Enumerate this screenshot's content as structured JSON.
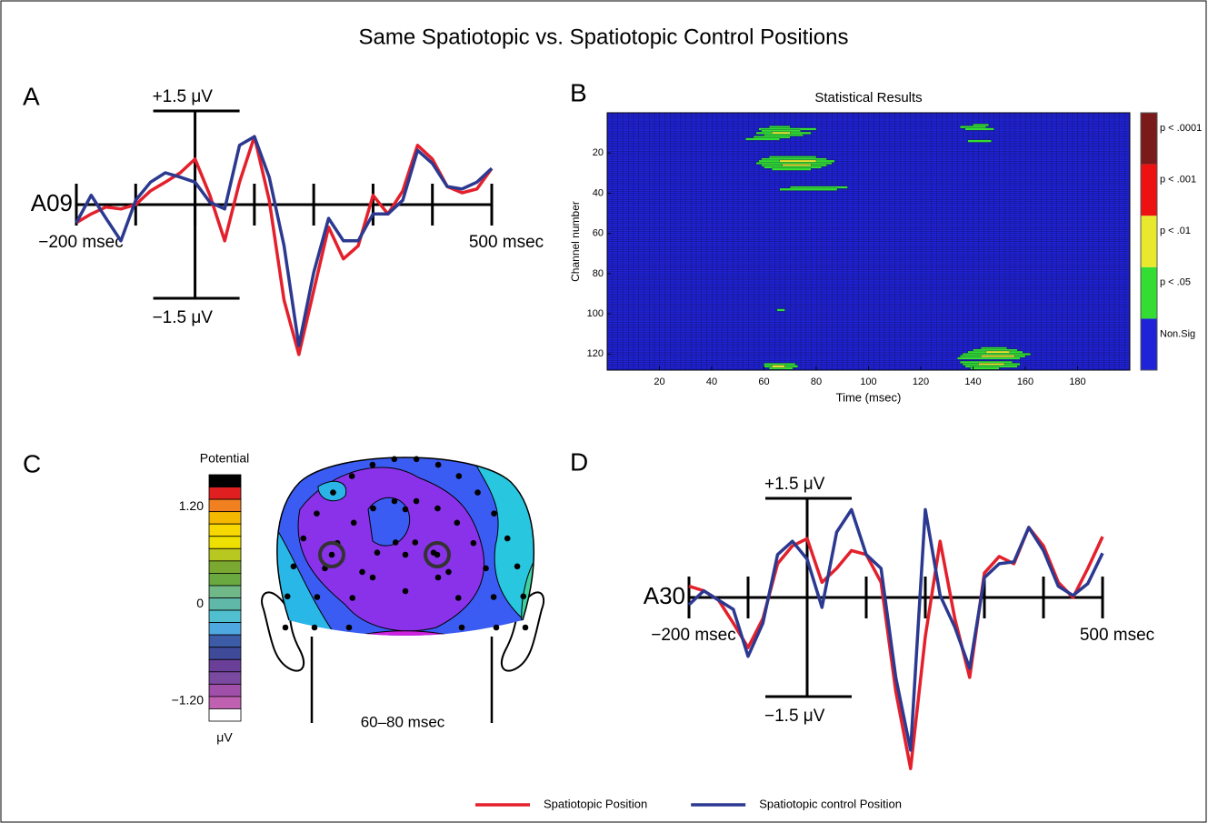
{
  "title": "Same Spatiotopic vs. Spatiotopic Control Positions",
  "chart_data": [
    {
      "type": "erp",
      "panel": "A",
      "channel": "A09",
      "x": [
        -200,
        -175,
        -150,
        -125,
        -100,
        -75,
        -50,
        -25,
        0,
        25,
        50,
        75,
        100,
        125,
        150,
        175,
        200,
        225,
        250,
        275,
        300,
        325,
        350,
        375,
        400,
        425,
        450,
        475,
        500
      ],
      "xlim": [
        -200,
        500
      ],
      "xticks": [
        -200,
        -100,
        0,
        100,
        200,
        300,
        400,
        500
      ],
      "xlabels": [
        {
          "value": -200,
          "label": "−200 msec"
        },
        {
          "value": 500,
          "label": "500 msec"
        }
      ],
      "ylim": [
        -1.5,
        1.5
      ],
      "yticks": [
        {
          "value": 1.5,
          "label": "+1.5 μV"
        },
        {
          "value": -1.5,
          "label": "−1.5 μV"
        }
      ],
      "legend": "bottom",
      "series": [
        {
          "name": "Spatiotopic Position",
          "color": "#e3202b",
          "values": [
            -0.29,
            -0.15,
            -0.04,
            -0.07,
            0,
            0.22,
            0.36,
            0.51,
            0.73,
            0.15,
            -0.58,
            0.36,
            1.09,
            0.07,
            -1.53,
            -2.4,
            -1.38,
            -0.36,
            -0.87,
            -0.66,
            0.15,
            -0.15,
            0.22,
            0.95,
            0.73,
            0.29,
            0.19,
            0.25,
            0.58
          ]
        },
        {
          "name": "Spatiotopic control Position",
          "color": "#2b3990",
          "values": [
            -0.29,
            0.15,
            -0.22,
            -0.58,
            0.07,
            0.36,
            0.51,
            0.44,
            0.36,
            0.04,
            -0.07,
            0.95,
            1.09,
            0.44,
            -0.66,
            -2.26,
            -1.09,
            -0.22,
            -0.58,
            -0.58,
            -0.15,
            -0.15,
            0.07,
            0.87,
            0.66,
            0.29,
            0.25,
            0.36,
            0.58
          ]
        }
      ]
    },
    {
      "type": "heatmap",
      "panel": "B",
      "title": "Statistical Results",
      "xlabel": "Time (msec)",
      "ylabel": "Channel number",
      "xlim": [
        0,
        200
      ],
      "xticks": [
        20,
        40,
        60,
        80,
        100,
        120,
        140,
        160,
        180
      ],
      "ylim": [
        0,
        128
      ],
      "yticks": [
        20,
        40,
        60,
        80,
        100,
        120
      ],
      "y_inverted": true,
      "grid": true,
      "levels": [
        {
          "label": "Non.Sig",
          "color": "#1f22d6"
        },
        {
          "label": "p < .05",
          "color": "#33dd33"
        },
        {
          "label": "p < .01",
          "color": "#e8e82e"
        },
        {
          "label": "p < .001",
          "color": "#ee1111"
        },
        {
          "label": "p < .0001",
          "color": "#7a1a1a"
        }
      ],
      "segments": [
        {
          "channel": 7,
          "t0": 62,
          "t1": 70,
          "level": 1
        },
        {
          "channel": 8,
          "t0": 58,
          "t1": 80,
          "level": 1
        },
        {
          "channel": 9,
          "t0": 59,
          "t1": 74,
          "level": 1
        },
        {
          "channel": 10,
          "t0": 57,
          "t1": 78,
          "level": 1
        },
        {
          "channel": 10,
          "t0": 63,
          "t1": 70,
          "level": 2
        },
        {
          "channel": 11,
          "t0": 60,
          "t1": 75,
          "level": 1
        },
        {
          "channel": 12,
          "t0": 56,
          "t1": 70,
          "level": 1
        },
        {
          "channel": 13,
          "t0": 53,
          "t1": 66,
          "level": 1
        },
        {
          "channel": 22,
          "t0": 62,
          "t1": 80,
          "level": 1
        },
        {
          "channel": 23,
          "t0": 59,
          "t1": 84,
          "level": 1
        },
        {
          "channel": 24,
          "t0": 58,
          "t1": 87,
          "level": 1
        },
        {
          "channel": 24,
          "t0": 66,
          "t1": 80,
          "level": 2
        },
        {
          "channel": 25,
          "t0": 57,
          "t1": 86,
          "level": 1
        },
        {
          "channel": 26,
          "t0": 59,
          "t1": 84,
          "level": 1
        },
        {
          "channel": 26,
          "t0": 67,
          "t1": 78,
          "level": 2
        },
        {
          "channel": 27,
          "t0": 60,
          "t1": 82,
          "level": 1
        },
        {
          "channel": 28,
          "t0": 63,
          "t1": 78,
          "level": 1
        },
        {
          "channel": 37,
          "t0": 70,
          "t1": 92,
          "level": 1
        },
        {
          "channel": 38,
          "t0": 66,
          "t1": 88,
          "level": 1
        },
        {
          "channel": 98,
          "t0": 65,
          "t1": 68,
          "level": 1
        },
        {
          "channel": 125,
          "t0": 60,
          "t1": 72,
          "level": 1
        },
        {
          "channel": 126,
          "t0": 60,
          "t1": 73,
          "level": 1
        },
        {
          "channel": 127,
          "t0": 62,
          "t1": 71,
          "level": 1
        },
        {
          "channel": 126,
          "t0": 63,
          "t1": 68,
          "level": 2
        },
        {
          "channel": 6,
          "t0": 140,
          "t1": 146,
          "level": 1
        },
        {
          "channel": 7,
          "t0": 135,
          "t1": 145,
          "level": 1
        },
        {
          "channel": 8,
          "t0": 137,
          "t1": 148,
          "level": 1
        },
        {
          "channel": 14,
          "t0": 138,
          "t1": 147,
          "level": 1
        },
        {
          "channel": 117,
          "t0": 143,
          "t1": 153,
          "level": 1
        },
        {
          "channel": 118,
          "t0": 140,
          "t1": 157,
          "level": 1
        },
        {
          "channel": 119,
          "t0": 138,
          "t1": 159,
          "level": 1
        },
        {
          "channel": 119,
          "t0": 145,
          "t1": 154,
          "level": 2
        },
        {
          "channel": 120,
          "t0": 136,
          "t1": 162,
          "level": 1
        },
        {
          "channel": 121,
          "t0": 135,
          "t1": 160,
          "level": 1
        },
        {
          "channel": 121,
          "t0": 143,
          "t1": 156,
          "level": 2
        },
        {
          "channel": 122,
          "t0": 134,
          "t1": 158,
          "level": 1
        },
        {
          "channel": 124,
          "t0": 135,
          "t1": 155,
          "level": 1
        },
        {
          "channel": 125,
          "t0": 136,
          "t1": 158,
          "level": 1
        },
        {
          "channel": 125,
          "t0": 142,
          "t1": 152,
          "level": 2
        },
        {
          "channel": 126,
          "t0": 137,
          "t1": 157,
          "level": 1
        },
        {
          "channel": 127,
          "t0": 139,
          "t1": 150,
          "level": 1
        }
      ]
    },
    {
      "type": "topomap",
      "panel": "C",
      "window": "60–80 msec",
      "colorbar": {
        "title": "Potential",
        "unit": "μV",
        "lim": [
          -1.45,
          1.6
        ],
        "ticks": [
          {
            "value": 1.2,
            "label": "1.20"
          },
          0,
          {
            "value": -1.2,
            "label": "−1.20"
          }
        ],
        "colors": [
          "#000000",
          "#e02020",
          "#f08020",
          "#f5b800",
          "#f7d800",
          "#eee000",
          "#b8c820",
          "#7aa830",
          "#6aa840",
          "#70b888",
          "#60b8a8",
          "#50c0d0",
          "#50a8e0",
          "#3d5ca8",
          "#3f4a98",
          "#6a3f98",
          "#7a4aa0",
          "#a050a8",
          "#c060b0",
          "#ffffff"
        ]
      }
    },
    {
      "type": "erp",
      "panel": "D",
      "channel": "A30",
      "x": [
        -200,
        -175,
        -150,
        -125,
        -100,
        -75,
        -50,
        -25,
        0,
        25,
        50,
        75,
        100,
        125,
        150,
        175,
        200,
        225,
        250,
        275,
        300,
        325,
        350,
        375,
        400,
        425,
        450,
        475,
        500
      ],
      "xlim": [
        -200,
        500
      ],
      "xticks": [
        -200,
        -100,
        0,
        100,
        200,
        300,
        400,
        500
      ],
      "xlabels": [
        {
          "value": -200,
          "label": "−200 msec"
        },
        {
          "value": 500,
          "label": "500 msec"
        }
      ],
      "ylim": [
        -1.5,
        1.5
      ],
      "yticks": [
        {
          "value": 1.5,
          "label": "+1.5 μV"
        },
        {
          "value": -1.5,
          "label": "−1.5 μV"
        }
      ],
      "series": [
        {
          "color": "#e3202b",
          "values": [
            0.17,
            0.1,
            -0.04,
            -0.39,
            -0.76,
            -0.32,
            0.51,
            0.78,
            0.89,
            0.23,
            0.44,
            0.71,
            0.65,
            0.23,
            -1.42,
            -2.59,
            -0.59,
            0.85,
            -0.32,
            -1.21,
            0.37,
            0.62,
            0.51,
            1.06,
            0.78,
            0.23,
            0,
            0.44,
            0.92
          ]
        },
        {
          "color": "#2b3990",
          "values": [
            -0.11,
            0.1,
            -0.04,
            -0.18,
            -0.89,
            -0.39,
            0.65,
            0.85,
            0.58,
            -0.15,
            0.99,
            1.33,
            0.65,
            0.44,
            -1.21,
            -2.31,
            1.33,
            0.03,
            -0.45,
            -1.07,
            0.3,
            0.51,
            0.54,
            1.06,
            0.71,
            0.17,
            0.03,
            0.21,
            0.67
          ]
        }
      ]
    }
  ]
}
